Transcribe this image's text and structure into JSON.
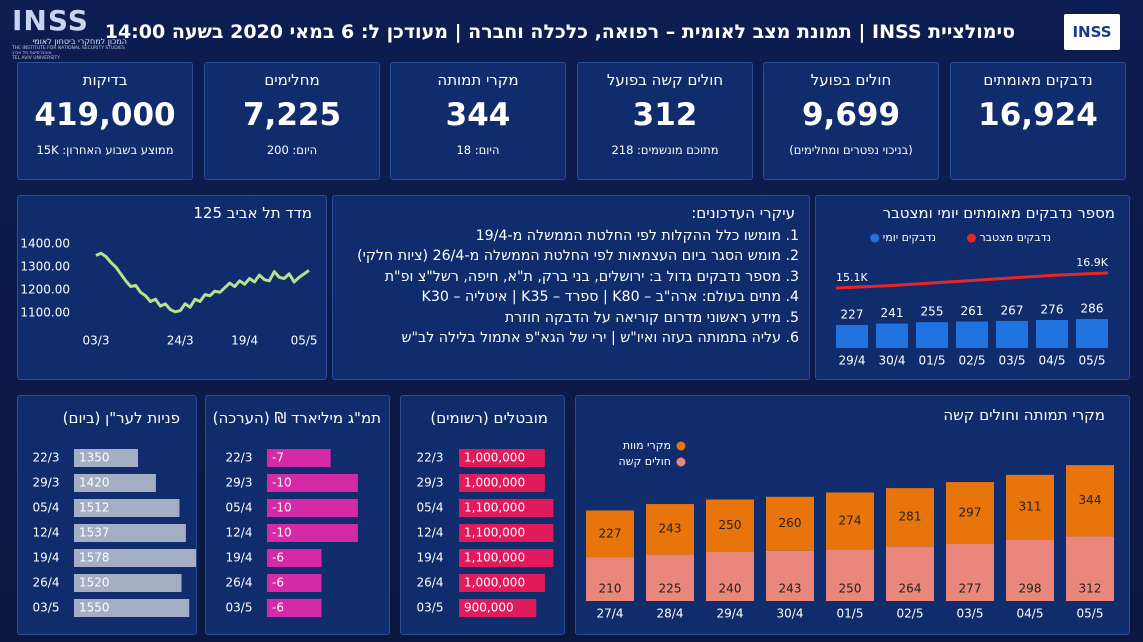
{
  "header": {
    "title": "סימולציית INSS | תמונת מצב לאומית – רפואה, כלכלה וחברה | מעודכן ל: 6 במאי 2020 בשעה 14:00",
    "logo_left": {
      "name": "INSS",
      "hebrew": "המכון למחקרי ביטחון לאומי",
      "english": "THE INSTITUTE FOR NATIONAL SECURITY STUDIES",
      "university_he": "אוניברסיטת תל אביב",
      "university_en": "TEL AVIV UNIVERSITY"
    },
    "logo_right": "INSS"
  },
  "kpis": [
    {
      "title": "נדבקים מאומתים",
      "value": "16,924"
    },
    {
      "title": "חולים בפועל",
      "value": "9,699",
      "note": "(בניכוי נפטרים ומחלימים)"
    },
    {
      "title": "חולים קשה בפועל",
      "value": "312",
      "note": "מתוכם מונשמים: 218"
    },
    {
      "title": "מקרי תמותה",
      "value": "344",
      "note": "היום: 18"
    },
    {
      "title": "מחלימים",
      "value": "7,225",
      "note": "היום: 200"
    },
    {
      "title": "בדיקות",
      "value": "419,000",
      "note": "ממוצע בשבוע האחרון: 15K"
    }
  ],
  "news": {
    "title": "עיקרי העדכונים:",
    "items": [
      "מומשו כלל ההקלות לפי החלטת הממשלה מ-19/4",
      "מומש הסגר ביום העצמאות לפי החלטת הממשלה מ-26/4 (ציות חלקי)",
      "מספר נדבקים גדול ב: ירושלים, בני ברק, ת\"א, חיפה, רשל\"צ ופ\"ת",
      "מתים בעולם: ארה\"ב – K80 | ספרד – K35 | איטליה – K30",
      "מידע ראשוני מדרום קוריאה על הדבקה חוזרת",
      "עליה בתמותה בעזה ואיו\"ש | ירי של הגא\"פ אתמול בלילה לב\"ש"
    ]
  },
  "chart_data": [
    {
      "type": "line",
      "title": "מדד תל אביב 125",
      "color": "#b8e08e",
      "categories": [
        "03/3",
        null,
        null,
        null,
        null,
        null,
        null,
        null,
        null,
        null,
        null,
        null,
        null,
        null,
        null,
        null,
        null,
        "24/3",
        null,
        null,
        null,
        null,
        null,
        null,
        null,
        null,
        null,
        null,
        null,
        null,
        "19/4",
        null,
        null,
        null,
        null,
        null,
        null,
        null,
        null,
        null,
        null,
        null,
        "05/5",
        null
      ],
      "values": [
        1350,
        1360,
        1345,
        1320,
        1300,
        1270,
        1240,
        1215,
        1220,
        1190,
        1175,
        1150,
        1160,
        1130,
        1140,
        1115,
        1105,
        1110,
        1140,
        1125,
        1160,
        1150,
        1180,
        1175,
        1195,
        1190,
        1210,
        1230,
        1215,
        1240,
        1225,
        1250,
        1235,
        1265,
        1245,
        1240,
        1280,
        1255,
        1250,
        1270,
        1235,
        1255,
        1270,
        1285
      ],
      "ylim": [
        1100,
        1400
      ],
      "yticks": [
        {
          "value": 1100,
          "label": "1100.00"
        },
        {
          "value": 1200,
          "label": "1200.00"
        },
        {
          "value": 1300,
          "label": "1300.00"
        },
        {
          "value": 1400,
          "label": "1400.00"
        }
      ]
    },
    {
      "type": "combo",
      "title": "מספר נדבקים מאומתים יומי ומצטבר",
      "categories": [
        "29/4",
        "30/4",
        "01/5",
        "02/5",
        "03/5",
        "04/5",
        "05/5"
      ],
      "series": [
        {
          "name": "נדבקים יומי",
          "type": "bar",
          "color": "#1f72e0",
          "values": [
            227,
            241,
            255,
            261,
            267,
            276,
            286
          ]
        },
        {
          "name": "נדבקים מצטבר",
          "type": "line",
          "axis": "y2",
          "color": "#e8262a",
          "values": [
            15100,
            15400,
            15700,
            16000,
            16300,
            16600,
            16900
          ],
          "value_labels": [
            "15.1K",
            null,
            null,
            null,
            null,
            null,
            "16.9K"
          ]
        }
      ],
      "ylim": [
        0,
        1500
      ],
      "y2lim": [
        8000,
        26000
      ]
    },
    {
      "type": "stacked_bar",
      "title": "מקרי תמותה וחולים קשה",
      "categories": [
        "27/4",
        "28/4",
        "29/4",
        "30/4",
        "01/5",
        "02/5",
        "03/5",
        "04/5",
        "05/5"
      ],
      "series": [
        {
          "name": "חולים קשה",
          "color": "#e9877c",
          "values": [
            210,
            225,
            240,
            243,
            250,
            264,
            277,
            298,
            312
          ]
        },
        {
          "name": "מקרי מוות",
          "color": "#e8740c",
          "values": [
            227,
            243,
            250,
            260,
            274,
            281,
            297,
            311,
            344
          ]
        }
      ],
      "ylim": [
        0,
        700
      ]
    },
    {
      "type": "hbar",
      "title": "פניות לער\"ן (ביום)",
      "color": "#a3aec4",
      "categories": [
        "22/3",
        "29/3",
        "05/4",
        "12/4",
        "19/4",
        "26/4",
        "03/5"
      ],
      "values": [
        1350,
        1420,
        1512,
        1537,
        1578,
        1520,
        1550
      ],
      "xlim": [
        1100,
        1600
      ]
    },
    {
      "type": "hbar",
      "title": "תמ\"ג מיליארד ₪ (הערכה)",
      "color": "#d42aa6",
      "categories": [
        "22/3",
        "29/3",
        "05/4",
        "12/4",
        "19/4",
        "26/4",
        "03/5"
      ],
      "values": [
        -7,
        -10,
        -10,
        -10,
        -6,
        -6,
        -6
      ],
      "xlim": [
        0,
        -11
      ]
    },
    {
      "type": "hbar",
      "title": "מובטלים (רשומים)",
      "color": "#e11a5b",
      "categories": [
        "22/3",
        "29/3",
        "05/4",
        "12/4",
        "19/4",
        "26/4",
        "03/5"
      ],
      "values": [
        1000000,
        1000000,
        1100000,
        1100000,
        1100000,
        1000000,
        900000
      ],
      "value_labels": [
        "1,000,000",
        "1,000,000",
        "1,100,000",
        "1,100,000",
        "1,100,000",
        "1,000,000",
        "900,000"
      ],
      "xlim": [
        0,
        1200000
      ]
    }
  ]
}
